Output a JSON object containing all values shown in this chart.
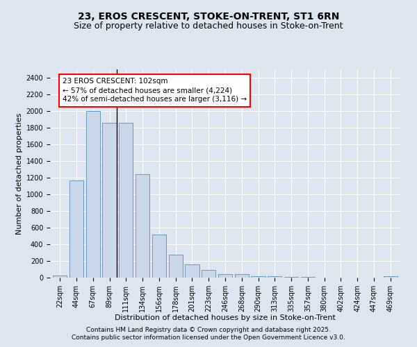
{
  "title1": "23, EROS CRESCENT, STOKE-ON-TRENT, ST1 6RN",
  "title2": "Size of property relative to detached houses in Stoke-on-Trent",
  "xlabel": "Distribution of detached houses by size in Stoke-on-Trent",
  "ylabel": "Number of detached properties",
  "categories": [
    "22sqm",
    "44sqm",
    "67sqm",
    "89sqm",
    "111sqm",
    "134sqm",
    "156sqm",
    "178sqm",
    "201sqm",
    "223sqm",
    "246sqm",
    "268sqm",
    "290sqm",
    "313sqm",
    "335sqm",
    "357sqm",
    "380sqm",
    "402sqm",
    "424sqm",
    "447sqm",
    "469sqm"
  ],
  "values": [
    25,
    1170,
    2000,
    1860,
    1860,
    1245,
    520,
    275,
    155,
    90,
    45,
    45,
    20,
    15,
    5,
    5,
    3,
    3,
    2,
    2,
    15
  ],
  "bar_color": "#c8d8e8",
  "bar_edge_color": "#6699bb",
  "annotation_line1": "23 EROS CRESCENT: 102sqm",
  "annotation_line2": "← 57% of detached houses are smaller (4,224)",
  "annotation_line3": "42% of semi-detached houses are larger (3,116) →",
  "bg_color": "#dde6f0",
  "plot_bg_color": "#dde6f0",
  "ylim": [
    0,
    2500
  ],
  "yticks": [
    0,
    200,
    400,
    600,
    800,
    1000,
    1200,
    1400,
    1600,
    1800,
    2000,
    2200,
    2400
  ],
  "footer1": "Contains HM Land Registry data © Crown copyright and database right 2025.",
  "footer2": "Contains public sector information licensed under the Open Government Licence v3.0.",
  "title_fontsize": 10,
  "subtitle_fontsize": 9,
  "axis_label_fontsize": 8,
  "tick_fontsize": 7,
  "annotation_fontsize": 7.5,
  "footer_fontsize": 6.5
}
